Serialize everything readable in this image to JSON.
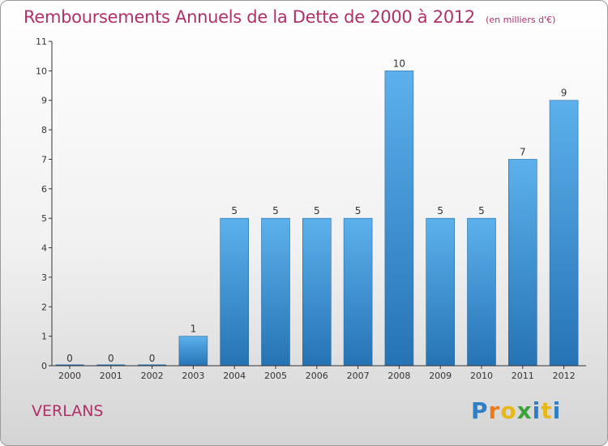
{
  "title": "Remboursements Annuels de la Dette de 2000 à 2012",
  "subtitle": "(en milliers d'€)",
  "city": "VERLANS",
  "logo_text": "Proxiti",
  "colors": {
    "title": "#b0306a",
    "bar_top": "#5cb1ec",
    "bar_bottom": "#2673b4",
    "axis": "#333333",
    "grid": "#dddddd"
  },
  "chart_data": {
    "type": "bar",
    "categories": [
      "2000",
      "2001",
      "2002",
      "2003",
      "2004",
      "2005",
      "2006",
      "2007",
      "2008",
      "2009",
      "2010",
      "2011",
      "2012"
    ],
    "values": [
      0,
      0,
      0,
      1,
      5,
      5,
      5,
      5,
      10,
      5,
      5,
      7,
      9
    ],
    "data_labels": [
      "0",
      "0",
      "0",
      "1",
      "5",
      "5",
      "5",
      "5",
      "10",
      "5",
      "5",
      "7",
      "9"
    ],
    "ylim": [
      0,
      11
    ],
    "yticks": [
      "0",
      "1",
      "2",
      "3",
      "4",
      "5",
      "6",
      "7",
      "8",
      "9",
      "10",
      "11"
    ],
    "grid": false
  }
}
